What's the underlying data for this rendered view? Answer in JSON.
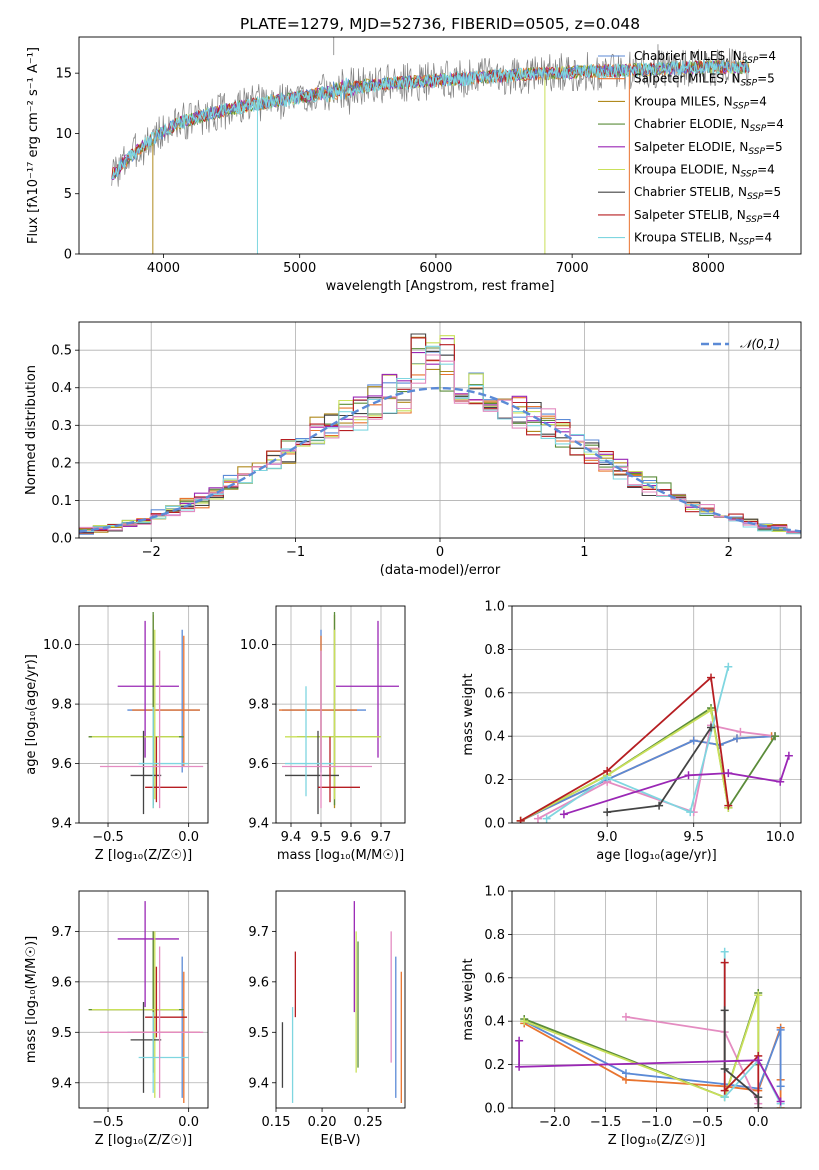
{
  "colors": {
    "blue": "#5b8ad6",
    "orange": "#e8742f",
    "olive": "#b08a1e",
    "green": "#5b8c3a",
    "purple": "#9a27b5",
    "yellowgreen": "#c9e05a",
    "dark": "#444444",
    "red": "#b61e22",
    "cyan": "#7fd6e0",
    "pink": "#e48cc1",
    "gray": "#808080",
    "teal": "#6ed2d8",
    "grid": "#b0b0b0",
    "normal": "#5b8ad6"
  },
  "chart_data": [
    {
      "id": "spectrum",
      "type": "line",
      "title": "PLATE=1279, MJD=52736, FIBERID=0505, z=0.048",
      "xlabel": "wavelength [Angstrom, rest frame]",
      "ylabel": "Flux [fλ10⁻¹⁷ erg cm⁻² s⁻¹ A⁻¹]",
      "xlim": [
        3380,
        8680
      ],
      "ylim": [
        0,
        18
      ],
      "xticks": [
        4000,
        5000,
        6000,
        7000,
        8000
      ],
      "yticks": [
        0,
        5,
        10,
        15
      ],
      "grid": false,
      "legend_position": "right",
      "legend": [
        {
          "text": "Chabrier MILES, N",
          "sub": "SSP",
          "n": "=4",
          "color": "#5b8ad6"
        },
        {
          "text": "Salpeter MILES, N",
          "sub": "SSP",
          "n": "=5",
          "color": "#e8742f"
        },
        {
          "text": "Kroupa MILES, N",
          "sub": "SSP",
          "n": "=4",
          "color": "#b08a1e"
        },
        {
          "text": "Chabrier ELODIE, N",
          "sub": "SSP",
          "n": "=4",
          "color": "#5b8c3a"
        },
        {
          "text": "Salpeter ELODIE, N",
          "sub": "SSP",
          "n": "=5",
          "color": "#9a27b5"
        },
        {
          "text": "Kroupa ELODIE, N",
          "sub": "SSP",
          "n": "=4",
          "color": "#c9e05a"
        },
        {
          "text": "Chabrier STELIB, N",
          "sub": "SSP",
          "n": "=5",
          "color": "#444444"
        },
        {
          "text": "Salpeter STELIB, N",
          "sub": "SSP",
          "n": "=4",
          "color": "#b61e22"
        },
        {
          "text": "Kroupa STELIB, N",
          "sub": "SSP",
          "n": "=4",
          "color": "#7fd6e0"
        }
      ],
      "continuum": {
        "x": [
          3620,
          3700,
          3800,
          3950,
          4100,
          4300,
          4600,
          5000,
          5500,
          6000,
          6500,
          7000,
          7500,
          8000,
          8300
        ],
        "y": [
          6.5,
          7.5,
          8.5,
          9.8,
          10.8,
          11.5,
          12.3,
          13.0,
          14.0,
          14.4,
          14.8,
          15.1,
          15.3,
          15.5,
          15.5
        ]
      },
      "data_range": [
        3620,
        8300
      ]
    },
    {
      "id": "residuals",
      "type": "step",
      "xlabel": "(data-model)/error",
      "ylabel": "Normed distribution",
      "xlim": [
        -2.5,
        2.5
      ],
      "ylim": [
        0,
        0.575
      ],
      "xticks": [
        -2,
        -1,
        0,
        1,
        2
      ],
      "yticks": [
        0.0,
        0.1,
        0.2,
        0.3,
        0.4,
        0.5
      ],
      "grid": true,
      "legend_position": "top-right",
      "legend": [
        {
          "text": "𝒩(0,1)",
          "color": "#5b8ad6"
        }
      ],
      "bin_width": 0.1
    },
    {
      "id": "age_vs_Z",
      "type": "errorbar",
      "xlabel": "Z [log₁₀(Z/Z☉)]",
      "ylabel": "age  [log₁₀(age/yr)]",
      "xlim": [
        -0.68,
        0.12
      ],
      "ylim": [
        9.4,
        10.13
      ],
      "xticks": [
        -0.5,
        0.0
      ],
      "yticks": [
        9.4,
        9.6,
        9.8,
        10.0
      ],
      "grid": true,
      "points": [
        {
          "c": "blue",
          "x": -0.04,
          "y": 9.78,
          "xe": [
            -0.38,
            0.07
          ],
          "ye": [
            9.57,
            10.05
          ]
        },
        {
          "c": "orange",
          "x": -0.03,
          "y": 9.78,
          "xe": [
            -0.35,
            0.07
          ],
          "ye": [
            9.59,
            10.03
          ]
        },
        {
          "c": "olive",
          "x": -0.22,
          "y": 9.69,
          "xe": [
            -0.62,
            -0.04
          ],
          "ye": [
            9.45,
            10.1
          ]
        },
        {
          "c": "green",
          "x": -0.22,
          "y": 9.69,
          "xe": [
            -0.62,
            -0.03
          ],
          "ye": [
            9.46,
            10.11
          ]
        },
        {
          "c": "purple",
          "x": -0.27,
          "y": 9.86,
          "xe": [
            -0.44,
            -0.06
          ],
          "ye": [
            9.62,
            10.08
          ]
        },
        {
          "c": "yellowgreen",
          "x": -0.21,
          "y": 9.69,
          "xe": [
            -0.6,
            -0.06
          ],
          "ye": [
            9.48,
            10.05
          ]
        },
        {
          "c": "dark",
          "x": -0.28,
          "y": 9.56,
          "xe": [
            -0.36,
            -0.17
          ],
          "ye": [
            9.43,
            9.71
          ]
        },
        {
          "c": "red",
          "x": -0.2,
          "y": 9.52,
          "xe": [
            -0.27,
            -0.01
          ],
          "ye": [
            9.47,
            9.69
          ]
        },
        {
          "c": "cyan",
          "x": -0.22,
          "y": 9.6,
          "xe": [
            -0.31,
            0.0
          ],
          "ye": [
            9.45,
            9.79
          ]
        },
        {
          "c": "pink",
          "x": -0.18,
          "y": 9.59,
          "xe": [
            -0.55,
            0.09
          ],
          "ye": [
            9.45,
            9.98
          ]
        }
      ]
    },
    {
      "id": "age_vs_mass",
      "type": "errorbar",
      "xlabel": "mass [log₁₀(M/M☉)]",
      "ylabel": "",
      "xlim": [
        9.35,
        9.78
      ],
      "ylim": [
        9.4,
        10.13
      ],
      "xticks": [
        9.4,
        9.5,
        9.6,
        9.7
      ],
      "yticks": [
        9.4,
        9.6,
        9.8,
        10.0
      ],
      "grid": true,
      "points": [
        {
          "c": "blue",
          "x": 9.5,
          "y": 9.78,
          "xe": [
            9.37,
            9.65
          ],
          "ye": [
            9.57,
            10.05
          ]
        },
        {
          "c": "orange",
          "x": 9.5,
          "y": 9.78,
          "xe": [
            9.36,
            9.62
          ],
          "ye": [
            9.59,
            10.03
          ]
        },
        {
          "c": "olive",
          "x": 9.545,
          "y": 9.69,
          "xe": [
            9.42,
            9.7
          ],
          "ye": [
            9.45,
            10.1
          ]
        },
        {
          "c": "green",
          "x": 9.545,
          "y": 9.69,
          "xe": [
            9.42,
            9.7
          ],
          "ye": [
            9.46,
            10.11
          ]
        },
        {
          "c": "purple",
          "x": 9.69,
          "y": 9.86,
          "xe": [
            9.55,
            9.76
          ],
          "ye": [
            9.62,
            10.08
          ]
        },
        {
          "c": "yellowgreen",
          "x": 9.545,
          "y": 9.69,
          "xe": [
            9.38,
            9.7
          ],
          "ye": [
            9.48,
            10.05
          ]
        },
        {
          "c": "dark",
          "x": 9.49,
          "y": 9.56,
          "xe": [
            9.38,
            9.56
          ],
          "ye": [
            9.43,
            9.71
          ]
        },
        {
          "c": "red",
          "x": 9.53,
          "y": 9.52,
          "xe": [
            9.49,
            9.63
          ],
          "ye": [
            9.47,
            9.69
          ]
        },
        {
          "c": "cyan",
          "x": 9.45,
          "y": 9.6,
          "xe": [
            9.38,
            9.54
          ],
          "ye": [
            9.49,
            9.86
          ]
        },
        {
          "c": "pink",
          "x": 9.5,
          "y": 9.59,
          "xe": [
            9.37,
            9.67
          ],
          "ye": [
            9.45,
            9.98
          ]
        }
      ]
    },
    {
      "id": "weight_vs_age",
      "type": "line",
      "xlabel": "age  [log₁₀(age/yr)]",
      "ylabel": "mass weight",
      "xlim": [
        8.45,
        10.12
      ],
      "ylim": [
        0,
        1.0
      ],
      "xticks": [
        9.0,
        9.5,
        10.0
      ],
      "yticks": [
        0.0,
        0.2,
        0.4,
        0.6,
        0.8,
        1.0
      ],
      "grid": true,
      "series": [
        {
          "c": "orange",
          "x": [
            8.5,
            9.0,
            9.5,
            9.65,
            9.75,
            9.95
          ],
          "y": [
            0.01,
            0.2,
            0.38,
            0.36,
            0.39,
            0.4
          ]
        },
        {
          "c": "blue",
          "x": [
            8.5,
            9.0,
            9.5,
            9.65,
            9.75,
            9.97
          ],
          "y": [
            0.01,
            0.2,
            0.38,
            0.36,
            0.39,
            0.4
          ]
        },
        {
          "c": "pink",
          "x": [
            8.6,
            9.0,
            9.5,
            9.6,
            9.77,
            9.97
          ],
          "y": [
            0.02,
            0.19,
            0.05,
            0.45,
            0.42,
            0.4
          ]
        },
        {
          "c": "green",
          "x": [
            8.5,
            9.0,
            9.6,
            9.7,
            9.97
          ],
          "y": [
            0.01,
            0.22,
            0.53,
            0.07,
            0.4
          ]
        },
        {
          "c": "yellowgreen",
          "x": [
            8.5,
            9.0,
            9.6,
            9.7
          ],
          "y": [
            0.01,
            0.22,
            0.52,
            0.07
          ]
        },
        {
          "c": "cyan",
          "x": [
            8.65,
            9.0,
            9.48,
            9.7
          ],
          "y": [
            0.02,
            0.21,
            0.05,
            0.72
          ]
        },
        {
          "c": "red",
          "x": [
            8.5,
            9.0,
            9.6,
            9.7
          ],
          "y": [
            0.01,
            0.24,
            0.67,
            0.08
          ]
        },
        {
          "c": "dark",
          "x": [
            9.0,
            9.3,
            9.6
          ],
          "y": [
            0.05,
            0.08,
            0.44
          ]
        },
        {
          "c": "purple",
          "x": [
            8.75,
            9.47,
            9.7,
            10.0,
            10.05
          ],
          "y": [
            0.04,
            0.22,
            0.23,
            0.19,
            0.31
          ]
        }
      ]
    },
    {
      "id": "mass_vs_Z",
      "type": "errorbar",
      "xlabel": "Z [log₁₀(Z/Z☉)]",
      "ylabel": "mass [log₁₀(M/M☉)]",
      "xlim": [
        -0.68,
        0.12
      ],
      "ylim": [
        9.35,
        9.78
      ],
      "xticks": [
        -0.5,
        0.0
      ],
      "yticks": [
        9.4,
        9.5,
        9.6,
        9.7
      ],
      "grid": true,
      "points": [
        {
          "c": "blue",
          "x": -0.04,
          "y": 9.5,
          "xe": [
            -0.38,
            0.07
          ],
          "ye": [
            9.37,
            9.65
          ]
        },
        {
          "c": "orange",
          "x": -0.03,
          "y": 9.5,
          "xe": [
            -0.35,
            0.07
          ],
          "ye": [
            9.36,
            9.62
          ]
        },
        {
          "c": "olive",
          "x": -0.22,
          "y": 9.545,
          "xe": [
            -0.62,
            -0.04
          ],
          "ye": [
            9.42,
            9.7
          ]
        },
        {
          "c": "green",
          "x": -0.22,
          "y": 9.545,
          "xe": [
            -0.62,
            -0.03
          ],
          "ye": [
            9.42,
            9.7
          ]
        },
        {
          "c": "purple",
          "x": -0.27,
          "y": 9.685,
          "xe": [
            -0.44,
            -0.06
          ],
          "ye": [
            9.55,
            9.76
          ]
        },
        {
          "c": "yellowgreen",
          "x": -0.21,
          "y": 9.545,
          "xe": [
            -0.6,
            -0.06
          ],
          "ye": [
            9.37,
            9.7
          ]
        },
        {
          "c": "dark",
          "x": -0.28,
          "y": 9.485,
          "xe": [
            -0.36,
            -0.17
          ],
          "ye": [
            9.38,
            9.56
          ]
        },
        {
          "c": "red",
          "x": -0.2,
          "y": 9.53,
          "xe": [
            -0.27,
            -0.01
          ],
          "ye": [
            9.49,
            9.63
          ]
        },
        {
          "c": "cyan",
          "x": -0.22,
          "y": 9.45,
          "xe": [
            -0.31,
            0.0
          ],
          "ye": [
            9.38,
            9.54
          ]
        },
        {
          "c": "pink",
          "x": -0.18,
          "y": 9.5,
          "xe": [
            -0.55,
            0.09
          ],
          "ye": [
            9.37,
            9.67
          ]
        }
      ]
    },
    {
      "id": "mass_vs_ebv",
      "type": "errorbar",
      "xlabel": "E(B-V)",
      "ylabel": "",
      "xlim": [
        0.15,
        0.29
      ],
      "ylim": [
        9.35,
        9.78
      ],
      "xticks": [
        0.15,
        0.2,
        0.25
      ],
      "yticks": [
        9.4,
        9.5,
        9.6,
        9.7
      ],
      "grid": false,
      "points": [
        {
          "c": "dark",
          "x": 0.157,
          "ye": [
            9.39,
            9.52
          ]
        },
        {
          "c": "cyan",
          "x": 0.168,
          "ye": [
            9.36,
            9.55
          ]
        },
        {
          "c": "red",
          "x": 0.171,
          "ye": [
            9.53,
            9.66
          ]
        },
        {
          "c": "purple",
          "x": 0.235,
          "ye": [
            9.54,
            9.76
          ]
        },
        {
          "c": "yellowgreen",
          "x": 0.237,
          "ye": [
            9.42,
            9.7
          ]
        },
        {
          "c": "green",
          "x": 0.239,
          "ye": [
            9.43,
            9.68
          ]
        },
        {
          "c": "pink",
          "x": 0.275,
          "ye": [
            9.44,
            9.7
          ]
        },
        {
          "c": "blue",
          "x": 0.28,
          "ye": [
            9.37,
            9.65
          ]
        },
        {
          "c": "orange",
          "x": 0.286,
          "ye": [
            9.36,
            9.62
          ]
        }
      ]
    },
    {
      "id": "weight_vs_Z",
      "type": "line",
      "xlabel": "Z [log₁₀(Z/Z☉)]",
      "ylabel": "mass weight",
      "xlim": [
        -2.42,
        0.42
      ],
      "ylim": [
        0,
        1.0
      ],
      "xticks": [
        -2.0,
        -1.5,
        -1.0,
        -0.5,
        0.0
      ],
      "yticks": [
        0.0,
        0.2,
        0.4,
        0.6,
        0.8,
        1.0
      ],
      "grid": true,
      "series": [
        {
          "c": "orange",
          "x": [
            -2.3,
            -1.3,
            -0.33,
            0.0,
            0.22,
            0.22,
            0.22
          ],
          "y": [
            0.39,
            0.13,
            0.1,
            0.08,
            0.37,
            0.13,
            0.0
          ]
        },
        {
          "c": "blue",
          "x": [
            -2.3,
            -1.3,
            -0.33,
            0.0,
            0.22,
            0.22
          ],
          "y": [
            0.4,
            0.16,
            0.11,
            0.09,
            0.36,
            0.1
          ]
        },
        {
          "c": "pink",
          "x": [
            -1.3,
            -0.33,
            0.0
          ],
          "y": [
            0.42,
            0.35,
            0.02
          ]
        },
        {
          "c": "green",
          "x": [
            -2.3,
            -0.33,
            0.0,
            0.0
          ],
          "y": [
            0.41,
            0.05,
            0.53,
            0.2
          ]
        },
        {
          "c": "yellowgreen",
          "x": [
            -2.3,
            -0.33,
            0.0,
            0.0
          ],
          "y": [
            0.4,
            0.05,
            0.52,
            0.22
          ]
        },
        {
          "c": "cyan",
          "x": [
            -0.33,
            -0.33,
            0.0,
            0.22
          ],
          "y": [
            0.72,
            0.05,
            0.22,
            0.02
          ]
        },
        {
          "c": "red",
          "x": [
            -0.33,
            -0.33,
            0.0,
            0.0
          ],
          "y": [
            0.67,
            0.08,
            0.24,
            0.0
          ]
        },
        {
          "c": "dark",
          "x": [
            -0.33,
            -0.33,
            0.0,
            0.0
          ],
          "y": [
            0.45,
            0.18,
            0.05,
            0.0
          ]
        },
        {
          "c": "purple",
          "x": [
            -2.35,
            -2.35,
            0.0,
            0.22
          ],
          "y": [
            0.31,
            0.19,
            0.22,
            0.03
          ]
        }
      ]
    }
  ]
}
